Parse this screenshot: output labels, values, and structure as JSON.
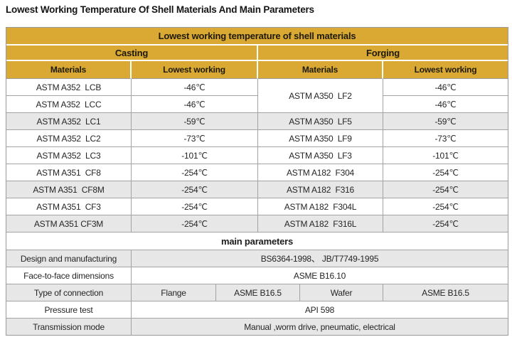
{
  "page": {
    "title": "Lowest Working Temperature Of Shell Materials And Main Parameters"
  },
  "colors": {
    "gold_header": "#D9A933",
    "shaded_row": "#E7E7E7",
    "border": "#9A9A9A",
    "text": "#262626"
  },
  "shell_table": {
    "header": "Lowest working temperature of shell materials",
    "group_headers": {
      "casting": "Casting",
      "forging": "Forging"
    },
    "column_headers": {
      "casting_materials": "Materials",
      "casting_lowest": "Lowest working",
      "forging_materials": "Materials",
      "forging_lowest": "Lowest working"
    },
    "rows": [
      {
        "casting_material": "ASTM A352  LCB",
        "casting_temp": "-46℃",
        "forging_material": "ASTM A350  LF2",
        "forging_temp": "-46℃"
      },
      {
        "casting_material": "ASTM A352  LCC",
        "casting_temp": "-46℃",
        "forging_temp": "-46℃"
      },
      {
        "casting_material": "ASTM A352  LC1",
        "casting_temp": "-59℃",
        "forging_material": "ASTM A350  LF5",
        "forging_temp": "-59℃"
      },
      {
        "casting_material": "ASTM A352  LC2",
        "casting_temp": "-73℃",
        "forging_material": "ASTM A350  LF9",
        "forging_temp": "-73℃"
      },
      {
        "casting_material": "ASTM A352  LC3",
        "casting_temp": "-101℃",
        "forging_material": "ASTM A350  LF3",
        "forging_temp": "-101℃"
      },
      {
        "casting_material": "ASTM A351  CF8",
        "casting_temp": "-254℃",
        "forging_material": "ASTM A182  F304",
        "forging_temp": "-254℃"
      },
      {
        "casting_material": "ASTM A351  CF8M",
        "casting_temp": "-254℃",
        "forging_material": "ASTM A182  F316",
        "forging_temp": "-254℃"
      },
      {
        "casting_material": "ASTM A351  CF3",
        "casting_temp": "-254℃",
        "forging_material": "ASTM A182  F304L",
        "forging_temp": "-254℃"
      },
      {
        "casting_material": "ASTM A351 CF3M",
        "casting_temp": "-254℃",
        "forging_material": "ASTM A182  F316L",
        "forging_temp": "-254℃"
      }
    ]
  },
  "main_parameters": {
    "header": "main parameters",
    "design_label": "Design and manufacturing",
    "design_value": "BS6364-1998、 JB/T7749-1995",
    "face_label": "Face-to-face dimensions",
    "face_value": "ASME B16.10",
    "connection_label": "Type of connection",
    "connection_flange": "Flange",
    "connection_flange_std": "ASME B16.5",
    "connection_wafer": "Wafer",
    "connection_wafer_std": "ASME B16.5",
    "pressure_label": "Pressure test",
    "pressure_value": "API 598",
    "transmission_label": "Transmission mode",
    "transmission_value": "Manual ,worm drive, pneumatic, electrical"
  }
}
